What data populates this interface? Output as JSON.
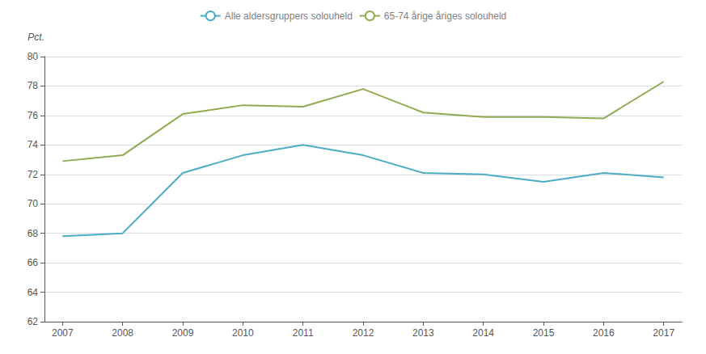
{
  "chart_data": {
    "type": "line",
    "x": [
      2007,
      2008,
      2009,
      2010,
      2011,
      2012,
      2013,
      2014,
      2015,
      2016,
      2017
    ],
    "series": [
      {
        "name": "Alle aldersgruppers solouheld",
        "color": "#4bacc6",
        "values": [
          67.8,
          68.0,
          72.1,
          73.3,
          74.0,
          73.3,
          72.1,
          72.0,
          71.5,
          72.1,
          71.8
        ]
      },
      {
        "name": "65-74 årige åriges solouheld",
        "color": "#8faa50",
        "values": [
          72.9,
          73.3,
          76.1,
          76.7,
          76.6,
          77.8,
          76.2,
          75.9,
          75.9,
          75.8,
          78.3
        ]
      }
    ],
    "ylabel": "Pct.",
    "xlim": [
      2006.7,
      2017.3
    ],
    "xticks": [
      2007,
      2008,
      2009,
      2010,
      2011,
      2012,
      2013,
      2014,
      2015,
      2016,
      2017
    ],
    "ylim": [
      62,
      80
    ],
    "yticks": [
      62,
      64,
      66,
      68,
      70,
      72,
      74,
      76,
      78,
      80
    ],
    "grid": true,
    "legend": "top"
  }
}
